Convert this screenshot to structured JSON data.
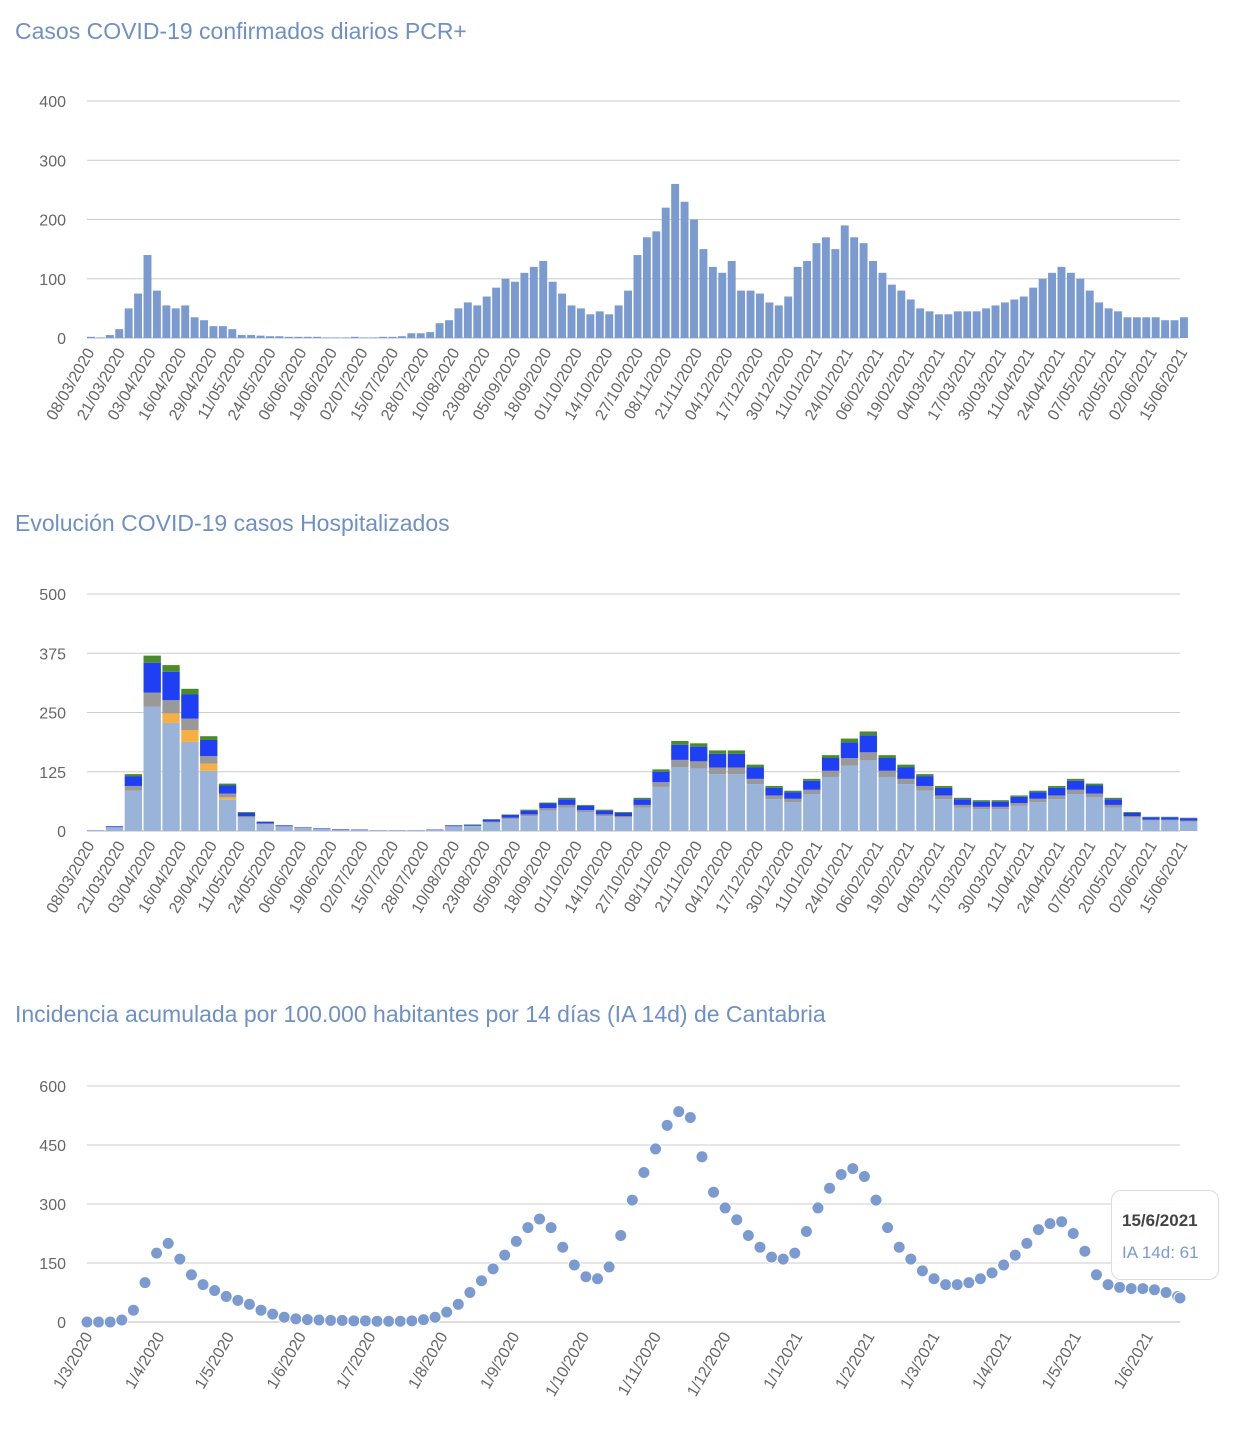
{
  "chart_data": [
    {
      "type": "bar",
      "title": "Casos COVID-19 confirmados diarios PCR+",
      "ylim": [
        0,
        400
      ],
      "yticks": [
        0,
        100,
        200,
        300,
        400
      ],
      "grid": true,
      "x_start": "08/03/2020",
      "step_days": 4,
      "color": "#7b9bd0",
      "xtick_labels": [
        "08/03/2020",
        "21/03/2020",
        "03/04/2020",
        "16/04/2020",
        "29/04/2020",
        "11/05/2020",
        "24/05/2020",
        "06/06/2020",
        "19/06/2020",
        "02/07/2020",
        "15/07/2020",
        "28/07/2020",
        "10/08/2020",
        "23/08/2020",
        "05/09/2020",
        "18/09/2020",
        "01/10/2020",
        "14/10/2020",
        "27/10/2020",
        "08/11/2020",
        "21/11/2020",
        "04/12/2020",
        "17/12/2020",
        "30/12/2020",
        "11/01/2021",
        "24/01/2021",
        "06/02/2021",
        "19/02/2021",
        "04/03/2021",
        "17/03/2021",
        "30/03/2021",
        "11/04/2021",
        "24/04/2021",
        "07/05/2021",
        "20/05/2021",
        "02/06/2021",
        "15/06/2021"
      ],
      "values": [
        2,
        1,
        5,
        15,
        50,
        75,
        140,
        80,
        55,
        50,
        55,
        35,
        30,
        20,
        20,
        15,
        5,
        5,
        4,
        3,
        3,
        2,
        2,
        2,
        2,
        1,
        1,
        1,
        2,
        1,
        1,
        2,
        2,
        3,
        8,
        8,
        10,
        25,
        30,
        50,
        60,
        55,
        70,
        85,
        100,
        95,
        110,
        120,
        130,
        95,
        75,
        55,
        50,
        40,
        45,
        40,
        55,
        80,
        140,
        170,
        180,
        220,
        260,
        230,
        200,
        150,
        120,
        110,
        130,
        80,
        80,
        75,
        60,
        55,
        70,
        120,
        130,
        160,
        170,
        150,
        190,
        170,
        160,
        130,
        110,
        90,
        80,
        65,
        50,
        45,
        40,
        40,
        45,
        45,
        45,
        50,
        55,
        60,
        65,
        70,
        85,
        100,
        110,
        120,
        110,
        100,
        80,
        60,
        50,
        45,
        35,
        35,
        35,
        35,
        30,
        30,
        35
      ]
    },
    {
      "type": "bar",
      "stacked": true,
      "title": "Evolución COVID-19 casos  Hospitalizados",
      "ylim": [
        0,
        500
      ],
      "yticks": [
        0,
        125,
        250,
        375,
        500
      ],
      "grid": true,
      "x_start": "08/03/2020",
      "step_days": 8,
      "xtick_labels": [
        "08/03/2020",
        "21/03/2020",
        "03/04/2020",
        "16/04/2020",
        "29/04/2020",
        "11/05/2020",
        "24/05/2020",
        "06/06/2020",
        "19/06/2020",
        "02/07/2020",
        "15/07/2020",
        "28/07/2020",
        "10/08/2020",
        "23/08/2020",
        "05/09/2020",
        "18/09/2020",
        "01/10/2020",
        "14/10/2020",
        "27/10/2020",
        "08/11/2020",
        "21/11/2020",
        "04/12/2020",
        "17/12/2020",
        "30/12/2020",
        "11/01/2021",
        "24/01/2021",
        "06/02/2021",
        "19/02/2021",
        "04/03/2021",
        "17/03/2021",
        "30/03/2021",
        "11/04/2021",
        "24/04/2021",
        "07/05/2021",
        "20/05/2021",
        "02/06/2021",
        "15/06/2021"
      ],
      "series": [
        {
          "color": "#9ab3d8",
          "values": [
            2,
            7,
            85,
            262,
            228,
            188,
            127,
            66,
            28,
            14,
            9,
            6,
            5,
            3,
            2,
            2,
            2,
            2,
            2,
            9,
            10,
            18,
            25,
            31,
            43,
            49,
            40,
            31,
            28,
            49,
            93,
            135,
            132,
            120,
            120,
            99,
            67,
            61,
            78,
            114,
            138,
            149,
            114,
            99,
            85,
            67,
            49,
            46,
            46,
            53,
            61,
            67,
            78,
            71,
            49,
            28,
            22,
            22,
            20
          ]
        },
        {
          "color": "#f5b041",
          "values": [
            0,
            0,
            0,
            0,
            20,
            25,
            15,
            5,
            0,
            0,
            0,
            0,
            0,
            0,
            0,
            0,
            0,
            0,
            0,
            0,
            0,
            0,
            0,
            0,
            0,
            0,
            0,
            0,
            0,
            0,
            0,
            0,
            0,
            0,
            0,
            0,
            0,
            0,
            0,
            0,
            0,
            0,
            0,
            0,
            0,
            0,
            0,
            0,
            0,
            0,
            0,
            0,
            0,
            0,
            0,
            0,
            0,
            0,
            0
          ]
        },
        {
          "color": "#999999",
          "values": [
            0,
            1,
            10,
            30,
            28,
            24,
            16,
            8,
            3,
            2,
            1,
            1,
            0,
            0,
            0,
            0,
            0,
            0,
            0,
            1,
            1,
            2,
            3,
            4,
            5,
            6,
            4,
            4,
            3,
            6,
            10,
            15,
            15,
            14,
            14,
            11,
            8,
            7,
            9,
            13,
            16,
            17,
            13,
            11,
            10,
            8,
            6,
            5,
            5,
            6,
            7,
            8,
            9,
            8,
            6,
            3,
            2,
            2,
            2
          ]
        },
        {
          "color": "#1f3ff5",
          "values": [
            0,
            2,
            20,
            63,
            60,
            51,
            34,
            17,
            7,
            3,
            2,
            1,
            1,
            1,
            1,
            0,
            0,
            0,
            1,
            2,
            2,
            4,
            6,
            8,
            10,
            12,
            9,
            8,
            7,
            12,
            22,
            32,
            31,
            29,
            29,
            24,
            16,
            14,
            19,
            27,
            33,
            36,
            27,
            24,
            20,
            16,
            12,
            11,
            11,
            13,
            14,
            16,
            19,
            17,
            12,
            7,
            5,
            5,
            5
          ]
        },
        {
          "color": "#4a8c2a",
          "values": [
            0,
            0,
            5,
            15,
            14,
            12,
            8,
            4,
            2,
            1,
            0,
            0,
            0,
            0,
            0,
            0,
            0,
            0,
            0,
            0,
            1,
            1,
            1,
            2,
            2,
            3,
            2,
            2,
            2,
            3,
            5,
            8,
            7,
            7,
            7,
            6,
            4,
            3,
            4,
            6,
            8,
            8,
            6,
            6,
            5,
            4,
            3,
            3,
            3,
            3,
            3,
            4,
            4,
            4,
            3,
            2,
            1,
            1,
            1
          ]
        }
      ]
    },
    {
      "type": "scatter",
      "title": "Incidencia acumulada por 100.000 habitantes por 14 días (IA 14d) de Cantabria",
      "ylim": [
        0,
        600
      ],
      "yticks": [
        0,
        150,
        300,
        450,
        600
      ],
      "grid": true,
      "color": "#7b9bd0",
      "xtick_labels": [
        "1/3/2020",
        "1/4/2020",
        "1/5/2020",
        "1/6/2020",
        "1/7/2020",
        "1/8/2020",
        "1/9/2020",
        "1/10/2020",
        "1/11/2020",
        "1/12/2020",
        "1/1/2021",
        "1/2/2021",
        "1/3/2021",
        "1/4/2021",
        "1/5/2021",
        "1/6/2021"
      ],
      "points": [
        [
          "1/3/2020",
          0
        ],
        [
          "6/3/2020",
          0
        ],
        [
          "11/3/2020",
          0
        ],
        [
          "16/3/2020",
          5
        ],
        [
          "21/3/2020",
          30
        ],
        [
          "26/3/2020",
          100
        ],
        [
          "31/3/2020",
          175
        ],
        [
          "5/4/2020",
          200
        ],
        [
          "10/4/2020",
          160
        ],
        [
          "15/4/2020",
          120
        ],
        [
          "20/4/2020",
          95
        ],
        [
          "25/4/2020",
          80
        ],
        [
          "30/4/2020",
          65
        ],
        [
          "5/5/2020",
          55
        ],
        [
          "10/5/2020",
          45
        ],
        [
          "15/5/2020",
          30
        ],
        [
          "20/5/2020",
          20
        ],
        [
          "25/5/2020",
          12
        ],
        [
          "30/5/2020",
          8
        ],
        [
          "4/6/2020",
          6
        ],
        [
          "9/6/2020",
          5
        ],
        [
          "14/6/2020",
          4
        ],
        [
          "19/6/2020",
          4
        ],
        [
          "24/6/2020",
          3
        ],
        [
          "29/6/2020",
          3
        ],
        [
          "4/7/2020",
          2
        ],
        [
          "9/7/2020",
          2
        ],
        [
          "14/7/2020",
          2
        ],
        [
          "19/7/2020",
          3
        ],
        [
          "24/7/2020",
          6
        ],
        [
          "29/7/2020",
          12
        ],
        [
          "3/8/2020",
          25
        ],
        [
          "8/8/2020",
          45
        ],
        [
          "13/8/2020",
          75
        ],
        [
          "18/8/2020",
          105
        ],
        [
          "23/8/2020",
          135
        ],
        [
          "28/8/2020",
          170
        ],
        [
          "2/9/2020",
          205
        ],
        [
          "7/9/2020",
          240
        ],
        [
          "12/9/2020",
          262
        ],
        [
          "17/9/2020",
          240
        ],
        [
          "22/9/2020",
          190
        ],
        [
          "27/9/2020",
          145
        ],
        [
          "2/10/2020",
          115
        ],
        [
          "7/10/2020",
          110
        ],
        [
          "12/10/2020",
          140
        ],
        [
          "17/10/2020",
          220
        ],
        [
          "22/10/2020",
          310
        ],
        [
          "27/10/2020",
          380
        ],
        [
          "1/11/2020",
          440
        ],
        [
          "6/11/2020",
          500
        ],
        [
          "11/11/2020",
          535
        ],
        [
          "16/11/2020",
          520
        ],
        [
          "21/11/2020",
          420
        ],
        [
          "26/11/2020",
          330
        ],
        [
          "1/12/2020",
          290
        ],
        [
          "6/12/2020",
          260
        ],
        [
          "11/12/2020",
          220
        ],
        [
          "16/12/2020",
          190
        ],
        [
          "21/12/2020",
          165
        ],
        [
          "26/12/2020",
          160
        ],
        [
          "31/12/2020",
          175
        ],
        [
          "5/1/2021",
          230
        ],
        [
          "10/1/2021",
          290
        ],
        [
          "15/1/2021",
          340
        ],
        [
          "20/1/2021",
          375
        ],
        [
          "25/1/2021",
          390
        ],
        [
          "30/1/2021",
          370
        ],
        [
          "4/2/2021",
          310
        ],
        [
          "9/2/2021",
          240
        ],
        [
          "14/2/2021",
          190
        ],
        [
          "19/2/2021",
          160
        ],
        [
          "24/2/2021",
          130
        ],
        [
          "1/3/2021",
          110
        ],
        [
          "6/3/2021",
          95
        ],
        [
          "11/3/2021",
          95
        ],
        [
          "16/3/2021",
          100
        ],
        [
          "21/3/2021",
          110
        ],
        [
          "26/3/2021",
          125
        ],
        [
          "31/3/2021",
          145
        ],
        [
          "5/4/2021",
          170
        ],
        [
          "10/4/2021",
          200
        ],
        [
          "15/4/2021",
          235
        ],
        [
          "20/4/2021",
          250
        ],
        [
          "25/4/2021",
          255
        ],
        [
          "30/4/2021",
          225
        ],
        [
          "5/5/2021",
          180
        ],
        [
          "10/5/2021",
          120
        ],
        [
          "15/5/2021",
          95
        ],
        [
          "20/5/2021",
          88
        ],
        [
          "25/5/2021",
          85
        ],
        [
          "30/5/2021",
          85
        ],
        [
          "4/6/2021",
          82
        ],
        [
          "9/6/2021",
          75
        ],
        [
          "14/6/2021",
          65
        ],
        [
          "15/6/2021",
          61
        ]
      ],
      "tooltip": {
        "date": "15/6/2021",
        "label": "IA 14d: 61"
      }
    }
  ]
}
